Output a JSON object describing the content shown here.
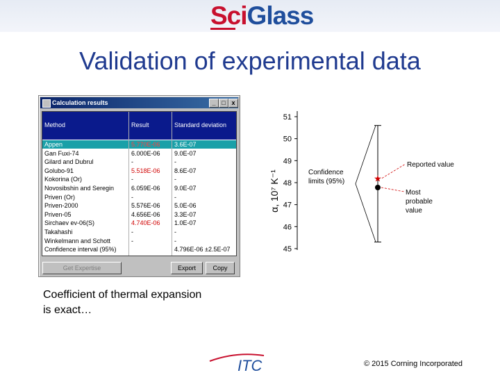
{
  "header": {
    "logo_sci": "Sci",
    "logo_glass": "Glass"
  },
  "slide": {
    "title": "Validation of experimental data",
    "caption_line1": "Coefficient of thermal expansion",
    "caption_line2": "is exact…"
  },
  "window": {
    "title": "Calculation results",
    "columns": [
      "Method",
      "Result",
      "Standard deviation"
    ],
    "rows": [
      {
        "method": "Appen",
        "result": "5.770E-06",
        "sd": "3.6E-07",
        "selected": true,
        "result_red": true
      },
      {
        "method": "Gan Fuxi-74",
        "result": "6.000E-06",
        "sd": "9.0E-07",
        "selected": false,
        "result_red": false
      },
      {
        "method": "Gilard and Dubrul",
        "result": "-",
        "sd": "-",
        "selected": false,
        "result_red": false
      },
      {
        "method": "Golubo-91",
        "result": "5.518E-06",
        "sd": "8.6E-07",
        "selected": false,
        "result_red": true
      },
      {
        "method": "Kokorina (Or)",
        "result": "-",
        "sd": "-",
        "selected": false,
        "result_red": false
      },
      {
        "method": "Novosibshin and Seregin",
        "result": "6.059E-06",
        "sd": "9.0E-07",
        "selected": false,
        "result_red": false
      },
      {
        "method": "Priven (Or)",
        "result": "-",
        "sd": "-",
        "selected": false,
        "result_red": false
      },
      {
        "method": "Priven-2000",
        "result": "5.576E-06",
        "sd": "5.0E-06",
        "selected": false,
        "result_red": false
      },
      {
        "method": "Priven-05",
        "result": "4.656E-06",
        "sd": "3.3E-07",
        "selected": false,
        "result_red": false
      },
      {
        "method": "Sirchaev ev-06(S)",
        "result": "4.740E-06",
        "sd": "1.0E-07",
        "selected": false,
        "result_red": true
      },
      {
        "method": "Takahashi",
        "result": "-",
        "sd": "-",
        "selected": false,
        "result_red": false
      },
      {
        "method": "Winkelmann and Schott",
        "result": "-",
        "sd": "-",
        "selected": false,
        "result_red": false
      },
      {
        "method": "Confidence interval (95%)",
        "result": "",
        "sd": "4.796E-06 ±2.5E-07",
        "selected": false,
        "result_red": false
      }
    ],
    "buttons": {
      "get_expertise": "Get Expertise",
      "export": "Export",
      "copy": "Copy"
    },
    "title_buttons": [
      "_",
      "□",
      "x"
    ]
  },
  "chart_data": {
    "type": "scatter",
    "ylim": [
      45,
      51
    ],
    "y_ticks": [
      "45",
      "46",
      "47",
      "48",
      "49",
      "50",
      "51"
    ],
    "ylabel": "α, 10⁷ K⁻¹",
    "interval": {
      "low": 45.3,
      "high": 50.6
    },
    "points": [
      {
        "name": "Reported value",
        "y": 48.2,
        "marker": "star",
        "color": "#d00000"
      },
      {
        "name": "Most probable value",
        "y": 48.0,
        "marker": "dot",
        "color": "#000000"
      }
    ],
    "annotations": {
      "confidence_line1": "Confidence",
      "confidence_line2": "limits (95%)",
      "reported": "Reported value",
      "most_probable_line1": "Most",
      "most_probable_line2": "probable",
      "most_probable_line3": "value"
    }
  },
  "footer": {
    "logo": "ITC",
    "copyright": "© 2015 Corning Incorporated"
  },
  "colors": {
    "title": "#1f3a8f",
    "logo_red": "#c8102e",
    "logo_blue": "#1f4e9c",
    "grid_header": "#0a1a8c",
    "selection": "#1aa0a8"
  }
}
